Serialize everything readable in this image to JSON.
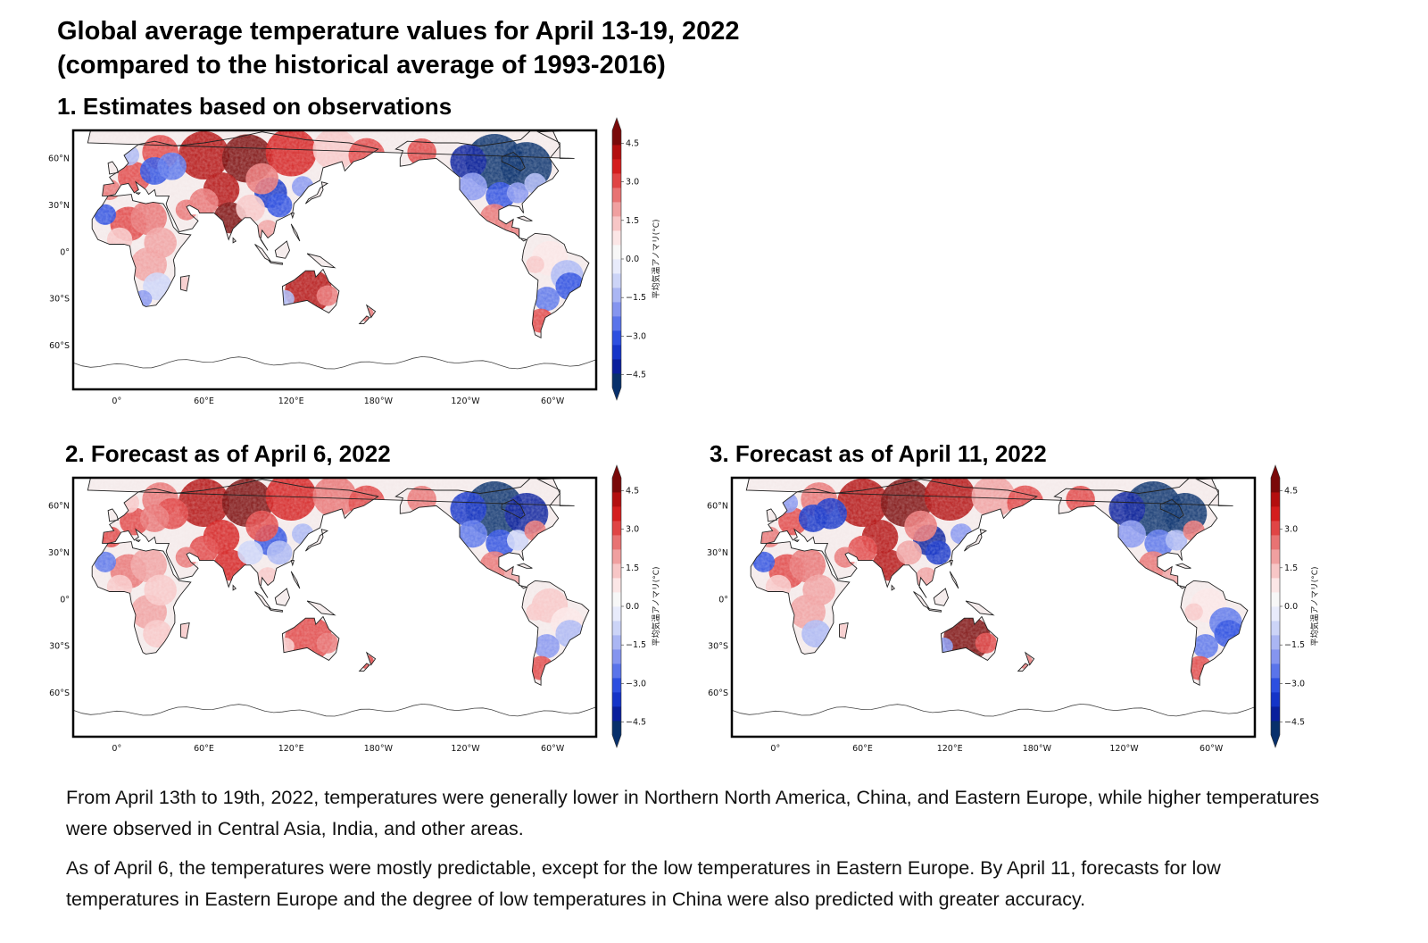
{
  "title_line1": "Global average temperature values for April 13-19, 2022",
  "title_line2": "(compared to the historical average of 1993-2016)",
  "panels": [
    {
      "heading": "1. Estimates based on observations",
      "scenario": "obs"
    },
    {
      "heading": "2. Forecast as of April 6, 2022",
      "scenario": "fc6"
    },
    {
      "heading": "3. Forecast as of April 11, 2022",
      "scenario": "fc11"
    }
  ],
  "lon_ticks": [
    "0°",
    "60°E",
    "120°E",
    "180°W",
    "120°W",
    "60°W"
  ],
  "lat_ticks": [
    "60°N",
    "30°N",
    "0°",
    "30°S",
    "60°S"
  ],
  "colorbar": {
    "title": "平均気温アノマリ(°C)",
    "ticks": [
      "4.5",
      "3.0",
      "1.5",
      "0.0",
      "−1.5",
      "−3.0",
      "−4.5"
    ],
    "colors": [
      "#08306b",
      "#0a1f9c",
      "#1534c8",
      "#2d4fe0",
      "#5a74ea",
      "#8595ef",
      "#aab6f3",
      "#ccd4f7",
      "#e8ebfb",
      "#f7f7f7",
      "#fbe6e6",
      "#f7c6c6",
      "#f0a0a0",
      "#e87373",
      "#e04545",
      "#d41e1e",
      "#b30f0f",
      "#7a0a0a"
    ]
  },
  "caption_p1": "From April 13th to 19th, 2022, temperatures were generally lower in Northern North America, China, and Eastern Europe, while higher temperatures were observed in Central Asia, India, and other areas.",
  "caption_p2": "As of April 6, the temperatures were mostly predictable, except for the low temperatures in Eastern Europe. By April 11, forecasts for low temperatures in Eastern Europe and the degree of low temperatures in China were also predicted with greater accuracy."
}
